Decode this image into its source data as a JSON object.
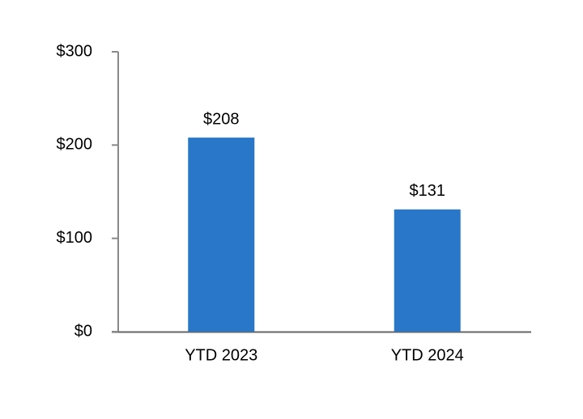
{
  "chart_data": {
    "type": "bar",
    "categories": [
      "YTD 2023",
      "YTD 2024"
    ],
    "values": [
      208,
      131
    ],
    "value_labels": [
      "$208",
      "$131"
    ],
    "color": "#2877c9",
    "ylim": [
      0,
      300
    ],
    "yticks": [
      {
        "value": 0,
        "label": "$0"
      },
      {
        "value": 100,
        "label": "$100"
      },
      {
        "value": 200,
        "label": "$200"
      },
      {
        "value": 300,
        "label": "$300"
      }
    ],
    "grid": false
  }
}
